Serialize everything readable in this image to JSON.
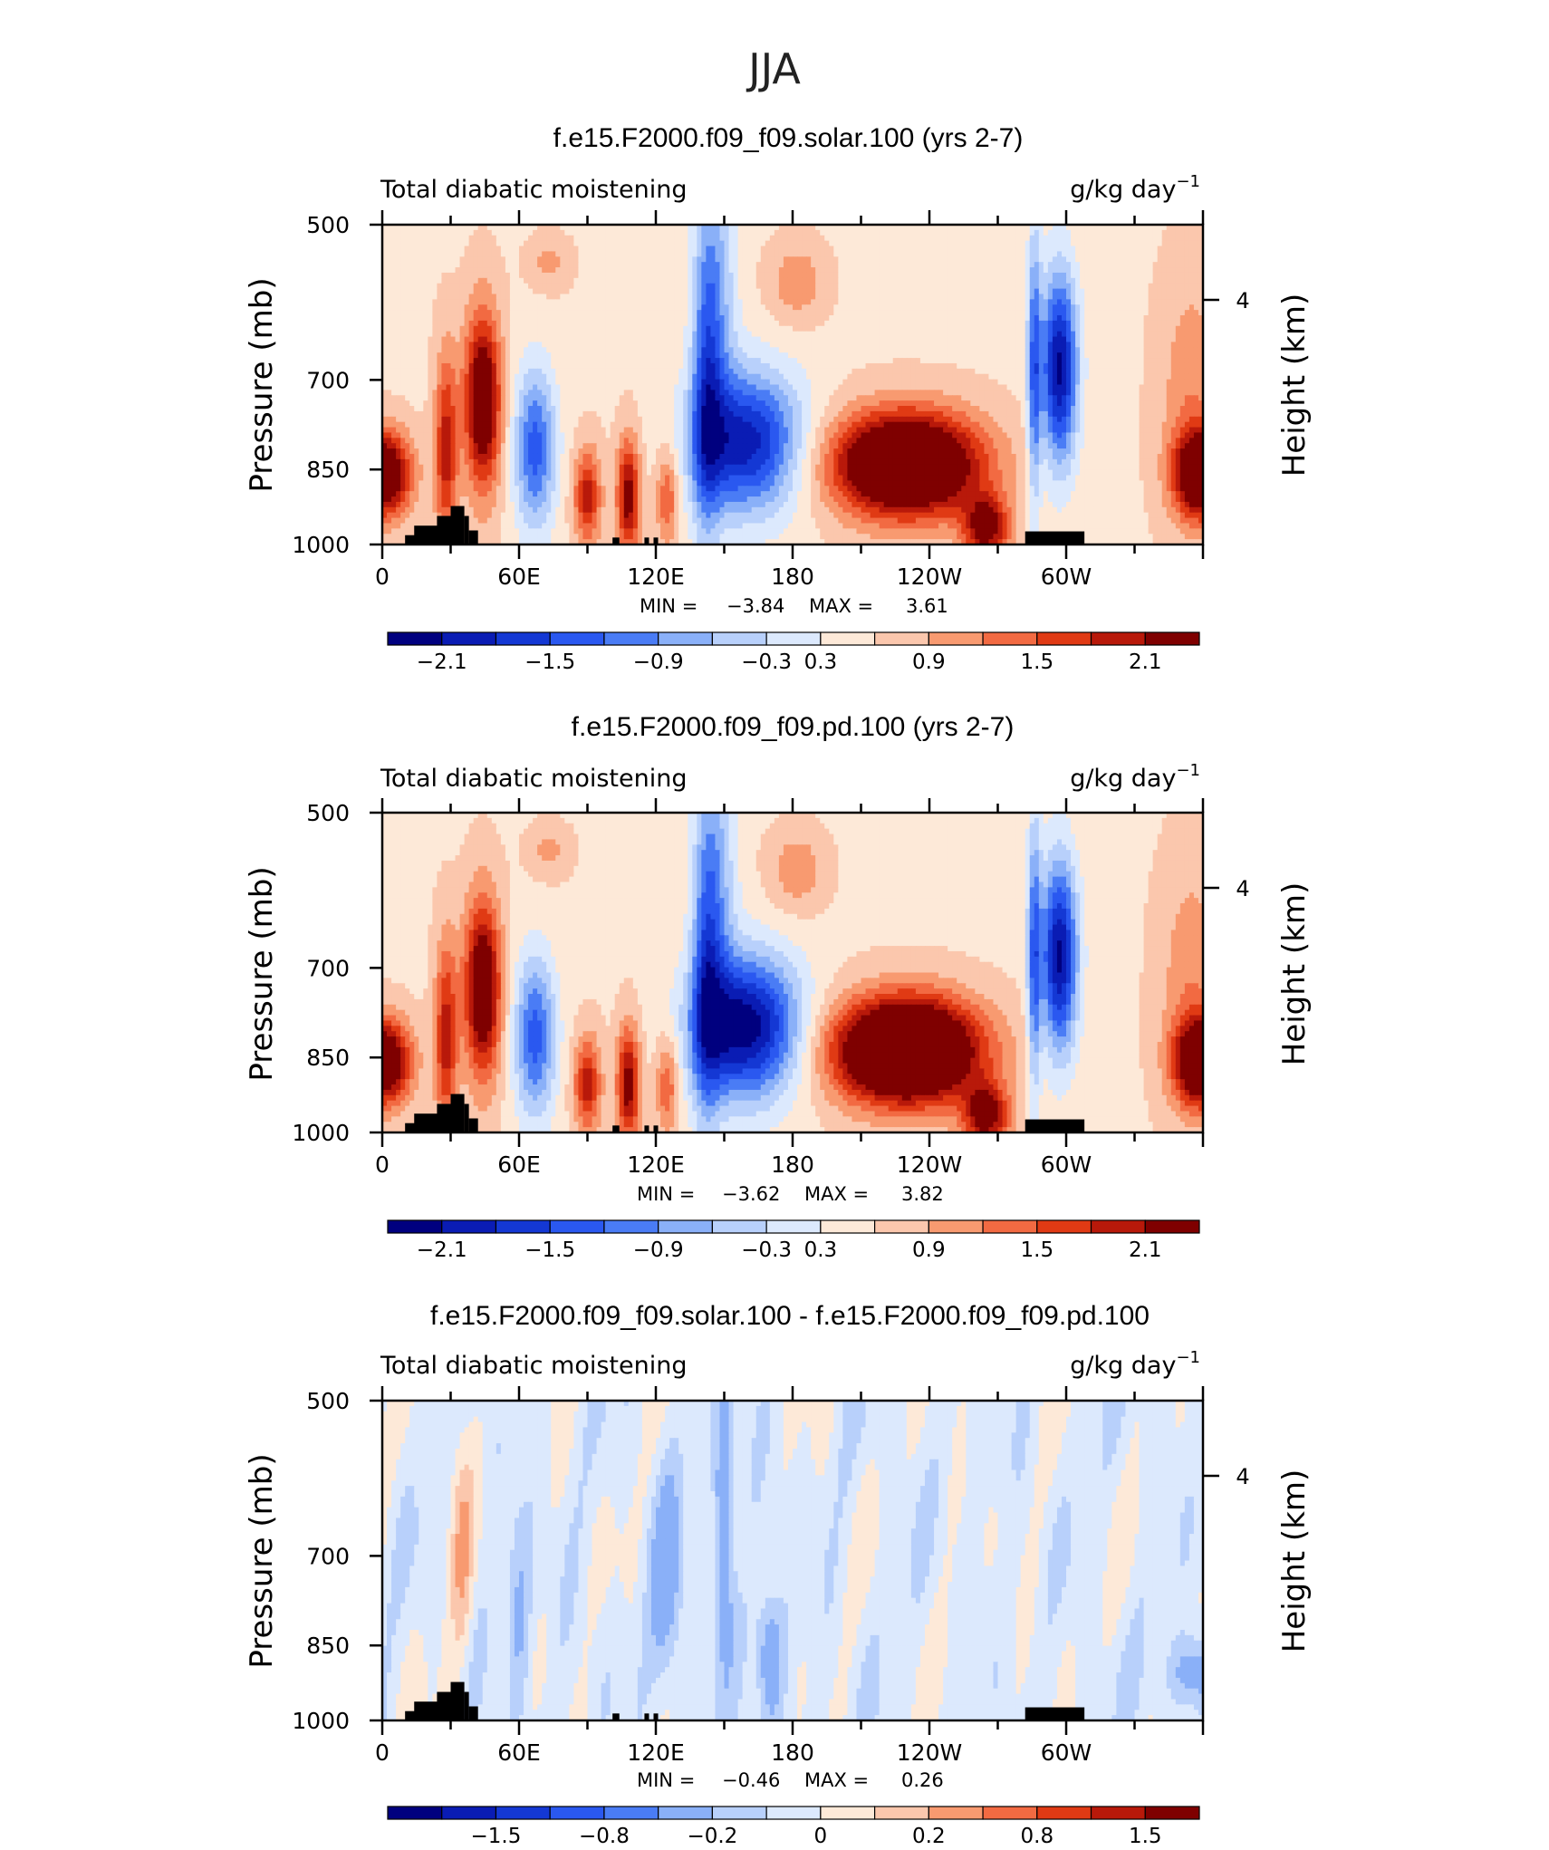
{
  "figure": {
    "season": "JJA"
  },
  "colors": {
    "main_scale": [
      "#00007f",
      "#0a1cb4",
      "#1438d4",
      "#2a58f0",
      "#4a7cf5",
      "#8ab0f8",
      "#b8d0fb",
      "#dce9fd",
      "#fde9d8",
      "#fbc7ad",
      "#f89a70",
      "#f26a42",
      "#e03a14",
      "#b8190a",
      "#7f0000"
    ],
    "diff_scale": [
      "#00007f",
      "#0a1cb4",
      "#1438d4",
      "#2a58f0",
      "#4a7cf5",
      "#8ab0f8",
      "#b8d0fb",
      "#dce9fd",
      "#fde9d8",
      "#fbc7ad",
      "#f89a70",
      "#f26a42",
      "#e03a14",
      "#b8190a",
      "#7f0000"
    ],
    "terrain": "#000000"
  },
  "chart_data": [
    {
      "type": "heatmap",
      "title": "f.e15.F2000.f09_f09.solar.100 (yrs 2-7)",
      "left_label": "Total diabatic moistening",
      "units_base": "g/kg day",
      "units_exp": "−1",
      "ylabel": "Pressure (mb)",
      "y2label": "Height (km)",
      "yticks": [
        "500",
        "700",
        "850",
        "1000"
      ],
      "ytick_values": [
        500,
        700,
        850,
        1000
      ],
      "y2tick": "4",
      "xticks": [
        "0",
        "60E",
        "120E",
        "180",
        "120W",
        "60W"
      ],
      "xtick_values": [
        0,
        60,
        120,
        180,
        240,
        300
      ],
      "xlim": [
        0,
        360
      ],
      "ylim": [
        1000,
        500
      ],
      "min_label": "MIN =",
      "min": "−3.84",
      "max_label": "MAX =",
      "max": "3.61",
      "colorbar_labels": [
        "−2.1",
        "−1.5",
        "−0.9",
        "−0.3",
        "0.3",
        "0.9",
        "1.5",
        "2.1"
      ],
      "colorbar_levels": [
        -2.4,
        -2.1,
        -1.8,
        -1.5,
        -1.2,
        -0.9,
        -0.6,
        -0.3,
        0,
        0.3,
        0.6,
        0.9,
        1.2,
        1.5,
        1.8,
        2.1,
        2.4
      ]
    },
    {
      "type": "heatmap",
      "title": "f.e15.F2000.f09_f09.pd.100 (yrs 2-7)",
      "left_label": "Total diabatic moistening",
      "units_base": "g/kg day",
      "units_exp": "−1",
      "ylabel": "Pressure (mb)",
      "y2label": "Height (km)",
      "yticks": [
        "500",
        "700",
        "850",
        "1000"
      ],
      "ytick_values": [
        500,
        700,
        850,
        1000
      ],
      "y2tick": "4",
      "xticks": [
        "0",
        "60E",
        "120E",
        "180",
        "120W",
        "60W"
      ],
      "xtick_values": [
        0,
        60,
        120,
        180,
        240,
        300
      ],
      "xlim": [
        0,
        360
      ],
      "ylim": [
        1000,
        500
      ],
      "min_label": "MIN =",
      "min": "−3.62",
      "max_label": "MAX =",
      "max": "3.82",
      "colorbar_labels": [
        "−2.1",
        "−1.5",
        "−0.9",
        "−0.3",
        "0.3",
        "0.9",
        "1.5",
        "2.1"
      ],
      "colorbar_levels": [
        -2.4,
        -2.1,
        -1.8,
        -1.5,
        -1.2,
        -0.9,
        -0.6,
        -0.3,
        0,
        0.3,
        0.6,
        0.9,
        1.2,
        1.5,
        1.8,
        2.1,
        2.4
      ]
    },
    {
      "type": "heatmap",
      "title": "f.e15.F2000.f09_f09.solar.100 - f.e15.F2000.f09_f09.pd.100",
      "left_label": "Total diabatic moistening",
      "units_base": "g/kg day",
      "units_exp": "−1",
      "ylabel": "Pressure (mb)",
      "y2label": "Height (km)",
      "yticks": [
        "500",
        "700",
        "850",
        "1000"
      ],
      "ytick_values": [
        500,
        700,
        850,
        1000
      ],
      "y2tick": "4",
      "xticks": [
        "0",
        "60E",
        "120E",
        "180",
        "120W",
        "60W"
      ],
      "xtick_values": [
        0,
        60,
        120,
        180,
        240,
        300
      ],
      "xlim": [
        0,
        360
      ],
      "ylim": [
        1000,
        500
      ],
      "min_label": "MIN =",
      "min": "−0.46",
      "max_label": "MAX =",
      "max": "0.26",
      "colorbar_labels": [
        "−1.5",
        "−0.8",
        "−0.2",
        "0",
        "0.2",
        "0.8",
        "1.5"
      ],
      "colorbar_levels": [
        -2.0,
        -1.5,
        -1.0,
        -0.8,
        -0.6,
        -0.4,
        -0.2,
        -0.1,
        0,
        0.1,
        0.2,
        0.4,
        0.6,
        0.8,
        1.0,
        1.5,
        2.0
      ]
    }
  ]
}
